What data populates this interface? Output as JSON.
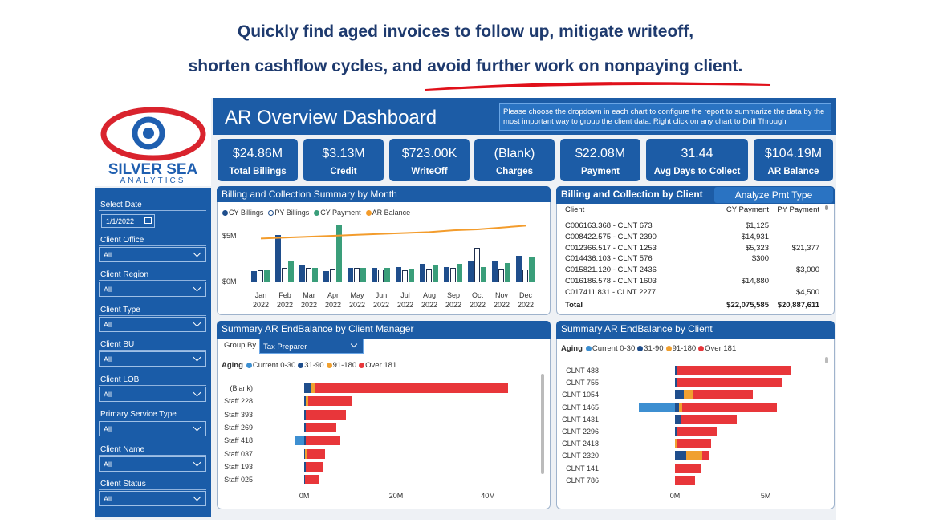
{
  "header": {
    "line1": "Quickly find aged invoices to follow up, mitigate writeoff,",
    "line2": "shorten cashflow cycles, and avoid further work on nonpaying client."
  },
  "sidebar": {
    "logo": {
      "name": "SILVER SEA",
      "tagline": "ANALYTICS"
    },
    "filters": [
      {
        "label": "Select Date",
        "value": "1/1/2022"
      },
      {
        "label": "Client Office",
        "value": "All"
      },
      {
        "label": "Client Region",
        "value": "All"
      },
      {
        "label": "Client Type",
        "value": "All"
      },
      {
        "label": "Client BU",
        "value": "All"
      },
      {
        "label": "Client LOB",
        "value": "All"
      },
      {
        "label": "Primary Service Type",
        "value": "All"
      },
      {
        "label": "Client Name",
        "value": "All"
      },
      {
        "label": "Client Status",
        "value": "All"
      }
    ]
  },
  "dashboard": {
    "title": "AR Overview Dashboard",
    "info": "Please choose the dropdown in each chart to configure the report to summarize the data by the most important way to group the client data. Right click on any chart to Drill Through"
  },
  "kpis": [
    {
      "value": "$24.86M",
      "label": "Total Billings"
    },
    {
      "value": "$3.13M",
      "label": "Credit"
    },
    {
      "value": "$723.00K",
      "label": "WriteOff"
    },
    {
      "value": "(Blank)",
      "label": "Charges"
    },
    {
      "value": "$22.08M",
      "label": "Payment"
    },
    {
      "value": "31.44",
      "label": "Avg Days to Collect"
    },
    {
      "value": "$104.19M",
      "label": "AR Balance"
    }
  ],
  "client_table": {
    "title": "Billing and Collection by Client",
    "button": "Analyze Pmt Type",
    "columns": [
      "Client",
      "CY Payment",
      "PY Payment"
    ],
    "rows": [
      [
        "C006163.368 - CLNT 673",
        "$1,125",
        ""
      ],
      [
        "C008422.575 - CLNT 2390",
        "$14,931",
        ""
      ],
      [
        "C012366.517 - CLNT 1253",
        "$5,323",
        "$21,377"
      ],
      [
        "C014436.103 - CLNT 576",
        "$300",
        ""
      ],
      [
        "C015821.120 - CLNT 2436",
        "",
        "$3,000"
      ],
      [
        "C016186.578 - CLNT 1603",
        "$14,880",
        ""
      ],
      [
        "C017411.831 - CLNT 2277",
        "",
        "$4,500"
      ]
    ],
    "total": [
      "Total",
      "$22,075,585",
      "$20,887,611"
    ]
  },
  "chart_data": [
    {
      "type": "bar",
      "title": "Billing and Collection Summary by Month",
      "categories": [
        "Jan 2022",
        "Feb 2022",
        "Mar 2022",
        "Apr 2022",
        "May 2022",
        "Jun 2022",
        "Jul 2022",
        "Aug 2022",
        "Sep 2022",
        "Oct 2022",
        "Nov 2022",
        "Dec 2022"
      ],
      "series": [
        {
          "name": "CY Billings",
          "color": "#1f4e8c",
          "values": [
            1.2,
            5.2,
            1.9,
            1.2,
            1.6,
            1.6,
            1.7,
            2.0,
            1.7,
            2.3,
            2.3,
            2.9
          ]
        },
        {
          "name": "PY Billings",
          "color": "#ffffff",
          "values": [
            1.3,
            1.6,
            1.6,
            1.5,
            1.6,
            1.4,
            1.3,
            1.5,
            1.6,
            3.8,
            1.5,
            1.4
          ]
        },
        {
          "name": "CY Payment",
          "color": "#3a9e7a",
          "values": [
            1.3,
            2.4,
            1.6,
            6.2,
            1.6,
            1.6,
            1.5,
            1.9,
            2.0,
            1.7,
            2.1,
            2.7
          ]
        },
        {
          "name": "AR Balance",
          "color": "#f39c2c",
          "type": "line",
          "values": [
            4.8,
            4.9,
            5.0,
            5.1,
            5.2,
            5.3,
            5.4,
            5.5,
            5.7,
            5.8,
            6.0,
            6.2
          ]
        }
      ],
      "ylim": [
        0,
        6.5
      ],
      "yticks": [
        {
          "value": 0,
          "label": "$0M"
        },
        {
          "value": 5,
          "label": "$5M"
        }
      ]
    },
    {
      "type": "hbar",
      "title": "Summary AR EndBalance by Client Manager",
      "group_by_label": "Group By",
      "group_by": "Tax Preparer",
      "legend_title": "Aging",
      "categories": [
        "(Blank)",
        "Staff 228",
        "Staff 393",
        "Staff 269",
        "Staff 418",
        "Staff 037",
        "Staff 193",
        "Staff 025"
      ],
      "series": [
        {
          "name": "Current 0-30",
          "color": "#3d8fd1",
          "values": [
            0,
            0,
            0,
            0,
            -2.1,
            0,
            0,
            0
          ]
        },
        {
          "name": "31-90",
          "color": "#1f4e8c",
          "values": [
            1.6,
            0.4,
            0.3,
            0.3,
            0.4,
            0.2,
            0.3,
            0.2
          ]
        },
        {
          "name": "91-180",
          "color": "#f0a030",
          "values": [
            0.7,
            0.5,
            0,
            0,
            0,
            0.4,
            0,
            0
          ]
        },
        {
          "name": "Over 181",
          "color": "#e8363a",
          "values": [
            42,
            9.4,
            8.7,
            6.6,
            7.5,
            4.0,
            3.8,
            3.1
          ]
        }
      ],
      "xlim": [
        -3,
        47
      ],
      "xticks": [
        {
          "value": 0,
          "label": "0M"
        },
        {
          "value": 20,
          "label": "20M"
        },
        {
          "value": 40,
          "label": "40M"
        }
      ]
    },
    {
      "type": "hbar",
      "title": "Summary AR EndBalance by Client",
      "legend_title": "Aging",
      "categories": [
        "CLNT 488",
        "CLNT 755",
        "CLNT 1054",
        "CLNT 1465",
        "CLNT 1431",
        "CLNT 2296",
        "CLNT 2418",
        "CLNT 2320",
        "CLNT 141",
        "CLNT 786"
      ],
      "series": [
        {
          "name": "Current 0-30",
          "color": "#3d8fd1",
          "values": [
            0,
            0,
            0,
            -2.0,
            0,
            0,
            0,
            0,
            0,
            0
          ]
        },
        {
          "name": "31-90",
          "color": "#1f4e8c",
          "values": [
            0.1,
            0.1,
            0.5,
            0.2,
            0.3,
            0.1,
            0,
            0.6,
            0,
            0
          ]
        },
        {
          "name": "91-180",
          "color": "#f0a030",
          "values": [
            0,
            0,
            0.5,
            0.2,
            0,
            0,
            0.1,
            0.9,
            0,
            0
          ]
        },
        {
          "name": "Over 181",
          "color": "#e8363a",
          "values": [
            6.3,
            5.8,
            3.3,
            5.2,
            3.1,
            2.2,
            1.9,
            0.4,
            1.4,
            1.1
          ]
        }
      ],
      "xlim": [
        -2.5,
        8
      ],
      "xticks": [
        {
          "value": 0,
          "label": "0M"
        },
        {
          "value": 5,
          "label": "5M"
        }
      ]
    }
  ]
}
